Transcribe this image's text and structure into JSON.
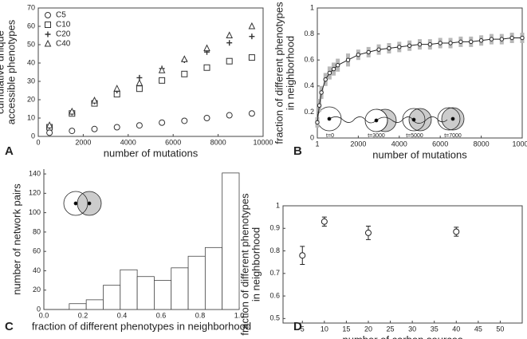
{
  "chart_data": [
    {
      "type": "scatter",
      "panel": "A",
      "x_label": "number of mutations",
      "y_label": [
        "cumulative unique",
        "accessible phenotypes"
      ],
      "x": [
        500,
        1500,
        2500,
        3500,
        4500,
        5500,
        6500,
        7500,
        8500,
        9500
      ],
      "series": [
        {
          "name": "C5",
          "marker": "circle",
          "color": "#333333",
          "values": [
            2,
            3,
            4,
            5,
            6,
            7.5,
            8.5,
            10,
            11.5,
            12.5
          ]
        },
        {
          "name": "C10",
          "marker": "square",
          "color": "#333333",
          "values": [
            5,
            12.5,
            18,
            23,
            26,
            30.5,
            34,
            37.5,
            41,
            43
          ]
        },
        {
          "name": "C20",
          "marker": "plus",
          "color": "#333333",
          "values": [
            5.5,
            13,
            19,
            25,
            32,
            37,
            41.5,
            46,
            51,
            54.5
          ]
        },
        {
          "name": "C40",
          "marker": "triangle",
          "color": "#333333",
          "values": [
            6,
            13.5,
            19.5,
            26,
            29,
            36,
            42,
            48,
            55,
            60
          ]
        }
      ],
      "legend": "upper left",
      "xlim": [
        0,
        10000
      ],
      "xticks": [
        0,
        2000,
        4000,
        6000,
        8000,
        10000
      ],
      "ylim": [
        0,
        70
      ],
      "yticks": [
        0,
        10,
        20,
        30,
        40,
        50,
        60,
        70
      ]
    },
    {
      "type": "line",
      "panel": "B",
      "x_label": "number of mutations",
      "y_label": [
        "fraction of different phenotypes",
        "in neighborhood"
      ],
      "x": [
        1,
        100,
        200,
        400,
        600,
        800,
        1000,
        1500,
        2000,
        2500,
        3000,
        3500,
        4000,
        4500,
        5000,
        5500,
        6000,
        6500,
        7000,
        7500,
        8000,
        8500,
        9000,
        9500,
        10000
      ],
      "series": [
        {
          "color": "#222222",
          "error_color": "#b8b8b8",
          "values": [
            0.12,
            0.25,
            0.35,
            0.45,
            0.5,
            0.53,
            0.56,
            0.6,
            0.64,
            0.66,
            0.68,
            0.69,
            0.7,
            0.71,
            0.72,
            0.72,
            0.73,
            0.73,
            0.74,
            0.74,
            0.75,
            0.76,
            0.76,
            0.77,
            0.77
          ],
          "errors": [
            0.04,
            0.05,
            0.05,
            0.05,
            0.05,
            0.05,
            0.05,
            0.05,
            0.04,
            0.04,
            0.04,
            0.04,
            0.04,
            0.04,
            0.04,
            0.04,
            0.04,
            0.04,
            0.04,
            0.04,
            0.04,
            0.04,
            0.04,
            0.04,
            0.04
          ]
        }
      ],
      "annotations": [
        "t=0",
        "t=3000",
        "t=5000",
        "t=7000"
      ],
      "xlim": [
        1,
        10000
      ],
      "xticks": [
        1,
        2000,
        4000,
        6000,
        8000,
        10000
      ],
      "ylim": [
        0,
        1
      ],
      "yticks": [
        0,
        0.2,
        0.4,
        0.6,
        0.8,
        1
      ]
    },
    {
      "type": "histogram",
      "panel": "C",
      "x_label": "fraction of different phenotypes in neighborhood",
      "y_label": [
        "number of network pairs"
      ],
      "bins": [
        0.13,
        0.217,
        0.304,
        0.391,
        0.478,
        0.565,
        0.652,
        0.739,
        0.826,
        0.913,
        1.0
      ],
      "counts": [
        6,
        10,
        25,
        41,
        34,
        30,
        43,
        55,
        64,
        141
      ],
      "color": "#ffffff",
      "xlim": [
        0,
        1
      ],
      "xticks": [
        {
          "value": 0,
          "label": "0.0"
        },
        0.2,
        0.4,
        0.6,
        0.8,
        {
          "value": 1,
          "label": "1.0"
        }
      ],
      "ylim": [
        0,
        145
      ],
      "yticks": [
        0,
        20,
        40,
        60,
        80,
        100,
        120,
        140
      ]
    },
    {
      "type": "errorbar",
      "panel": "D",
      "x_label": "number of carbon sources",
      "y_label": [
        "fraction of different phenotypes",
        "in neighborhood"
      ],
      "x": [
        5,
        10,
        20,
        40
      ],
      "series": [
        {
          "color": "#222222",
          "values": [
            0.78,
            0.93,
            0.88,
            0.885
          ],
          "errors": [
            0.04,
            0.02,
            0.03,
            0.02
          ]
        }
      ],
      "xlim": [
        0.6,
        55
      ],
      "xticks": [
        5,
        10,
        15,
        20,
        25,
        30,
        35,
        40,
        45,
        50
      ],
      "ylim": [
        0.48,
        1
      ],
      "yticks": [
        0.5,
        0.6,
        0.7,
        0.8,
        0.9,
        1
      ]
    }
  ]
}
